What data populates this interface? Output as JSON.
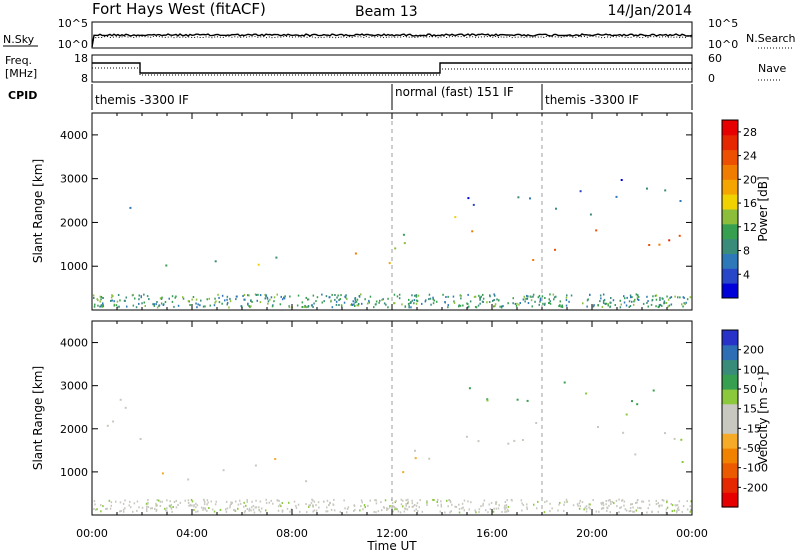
{
  "header": {
    "title": "Fort Hays West (fitACF)",
    "beam": "Beam 13",
    "date": "14/Jan/2014"
  },
  "top_panels": {
    "nsky": {
      "label": "N.Sky",
      "yticks": [
        "10^5",
        "10^0"
      ],
      "right_label": "N.Search",
      "right_yticks": [
        "10^5",
        "10^0"
      ]
    },
    "freq": {
      "label_line1": "Freq.",
      "label_line2": "[MHz]",
      "yticks": [
        "18",
        "8"
      ],
      "right_label": "Nave",
      "right_yticks": [
        "60",
        "0"
      ]
    },
    "cpid": {
      "label": "CPID",
      "segments": [
        {
          "text": "themis -3300 IF",
          "start_hour": 0
        },
        {
          "text": "normal (fast) 151 IF",
          "start_hour": 12
        },
        {
          "text": "themis -3300 IF",
          "start_hour": 18
        }
      ]
    }
  },
  "chart_data": [
    {
      "type": "heatmap",
      "parameter": "power",
      "ylabel": "Slant Range [km]",
      "xlabel": "",
      "ylim": [
        0,
        4500
      ],
      "yticks": [
        "1000",
        "2000",
        "3000",
        "4000"
      ],
      "xlim_hours": [
        0,
        24
      ],
      "colorbar": {
        "label": "Power [dB]",
        "ticks": [
          "4",
          "8",
          "12",
          "16",
          "20",
          "24",
          "28"
        ],
        "range": [
          0,
          30
        ],
        "colors": [
          "#0000d8",
          "#2846c8",
          "#2d78b8",
          "#3a8c7a",
          "#37a050",
          "#8cbe3c",
          "#f0d200",
          "#f5a500",
          "#f07d00",
          "#ec5000",
          "#e62800",
          "#e60000"
        ]
      },
      "echo_regions": [
        {
          "t0": 0.0,
          "t1": 0.7,
          "r0": 1900,
          "r1": 2500,
          "level": 12
        },
        {
          "t0": 0.7,
          "t1": 1.6,
          "r0": 1800,
          "r1": 2900,
          "level": 8
        },
        {
          "t0": 1.5,
          "t1": 2.1,
          "r0": 1200,
          "r1": 1700,
          "level": 22
        },
        {
          "t0": 2.4,
          "t1": 5.0,
          "r0": 700,
          "r1": 1350,
          "level": 8
        },
        {
          "t0": 5.0,
          "t1": 7.6,
          "r0": 750,
          "r1": 1500,
          "level": 12
        },
        {
          "t0": 7.6,
          "t1": 8.6,
          "r0": 800,
          "r1": 1200,
          "level": 8
        },
        {
          "t0": 10.3,
          "t1": 11.9,
          "r0": 600,
          "r1": 1500,
          "level": 18
        },
        {
          "t0": 11.9,
          "t1": 14.0,
          "r0": 900,
          "r1": 2000,
          "level": 14
        },
        {
          "t0": 14.2,
          "t1": 15.6,
          "r0": 1200,
          "r1": 2500,
          "level": 20
        },
        {
          "t0": 15.6,
          "t1": 24.0,
          "r0": 1100,
          "r1": 1900,
          "level": 24
        },
        {
          "t0": 15.0,
          "t1": 24.0,
          "r0": 2000,
          "r1": 3200,
          "level": 6
        }
      ]
    },
    {
      "type": "heatmap",
      "parameter": "velocity",
      "ylabel": "Slant Range [km]",
      "xlabel": "Time UT",
      "ylim": [
        0,
        4500
      ],
      "yticks": [
        "1000",
        "2000",
        "3000",
        "4000"
      ],
      "xlim_hours": [
        0,
        24
      ],
      "xticks": [
        "00:00",
        "04:00",
        "08:00",
        "12:00",
        "16:00",
        "20:00",
        "00:00"
      ],
      "colorbar": {
        "label": "Velocity [m s⁻¹]",
        "ticks": [
          "200",
          "100",
          "50",
          "15",
          "-15",
          "-50",
          "-100",
          "-200"
        ],
        "colors": [
          "#2832c8",
          "#2d6eb4",
          "#3a8c7a",
          "#37a050",
          "#8cc83c",
          "#c8c8c0",
          "#c8c8c0",
          "#f5aa28",
          "#f08200",
          "#ec5a00",
          "#e62800",
          "#e60000"
        ]
      },
      "echo_regions": [
        {
          "t0": 0.0,
          "t1": 2.1,
          "r0": 1200,
          "r1": 3300,
          "v": 0
        },
        {
          "t0": 0.9,
          "t1": 1.1,
          "r0": 2900,
          "r1": 3300,
          "v": -120
        },
        {
          "t0": 2.4,
          "t1": 8.6,
          "r0": 700,
          "r1": 1500,
          "v": -40
        },
        {
          "t0": 10.3,
          "t1": 13.0,
          "r0": 700,
          "r1": 1700,
          "v": -45
        },
        {
          "t0": 13.0,
          "t1": 14.0,
          "r0": 1000,
          "r1": 2200,
          "v": 20
        },
        {
          "t0": 14.2,
          "t1": 24.0,
          "r0": 1100,
          "r1": 2300,
          "v": 0
        },
        {
          "t0": 15.0,
          "t1": 24.0,
          "r0": 2100,
          "r1": 3200,
          "v": 60
        }
      ]
    }
  ]
}
